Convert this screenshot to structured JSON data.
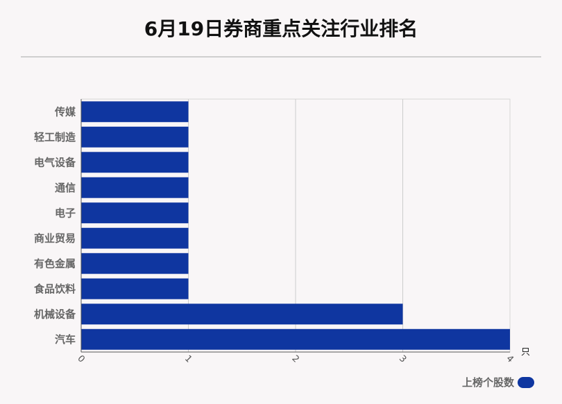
{
  "title": "6月19日券商重点关注行业排名",
  "colors": {
    "bar": "#0f36a0",
    "grid": "#cccccc",
    "axis": "#444444"
  },
  "chart_data": {
    "type": "bar",
    "orientation": "horizontal",
    "categories": [
      "传媒",
      "轻工制造",
      "电气设备",
      "通信",
      "电子",
      "商业贸易",
      "有色金属",
      "食品饮料",
      "机械设备",
      "汽车"
    ],
    "series": [
      {
        "name": "上榜个股数",
        "values": [
          1,
          1,
          1,
          1,
          1,
          1,
          1,
          1,
          3,
          4
        ]
      }
    ],
    "xlim": [
      0,
      4
    ],
    "xticks": [
      "0",
      "1",
      "2",
      "3",
      "4"
    ],
    "xunit": "只",
    "grid": true,
    "legend_position": "bottom-right"
  }
}
